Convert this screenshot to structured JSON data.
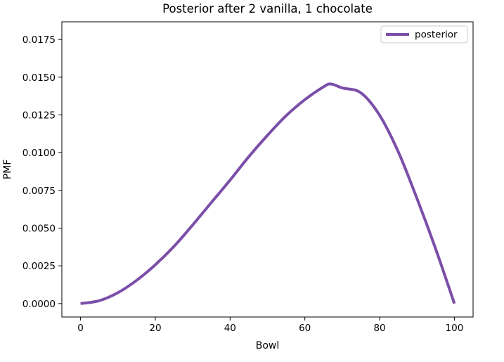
{
  "chart_data": {
    "type": "line",
    "title": "Posterior after 2 vanilla, 1 chocolate",
    "xlabel": "Bowl",
    "ylabel": "PMF",
    "xlim": [
      -5,
      105
    ],
    "ylim": [
      -0.00089,
      0.01867
    ],
    "x_ticks": [
      0,
      20,
      40,
      60,
      80,
      100
    ],
    "y_ticks": [
      0.0,
      0.0025,
      0.005,
      0.0075,
      0.01,
      0.0125,
      0.015,
      0.0175
    ],
    "x_tick_labels": [
      "0",
      "20",
      "40",
      "60",
      "80",
      "100"
    ],
    "y_tick_labels": [
      "0.0000",
      "0.0025",
      "0.0050",
      "0.0075",
      "0.0100",
      "0.0125",
      "0.0150",
      "0.0175"
    ],
    "grid": false,
    "legend": {
      "position": "top-right",
      "entries": [
        "posterior"
      ]
    },
    "series": [
      {
        "name": "posterior",
        "color": "#7b4ea8",
        "x": [
          0,
          5,
          10,
          15,
          20,
          25,
          30,
          35,
          40,
          45,
          50,
          55,
          60,
          65,
          67,
          70,
          75,
          80,
          85,
          90,
          95,
          100
        ],
        "y": [
          0.0,
          0.00019,
          0.00072,
          0.00154,
          0.00257,
          0.00379,
          0.00521,
          0.0067,
          0.00818,
          0.00973,
          0.01115,
          0.01245,
          0.01351,
          0.01436,
          0.01455,
          0.01429,
          0.01396,
          0.01248,
          0.01005,
          0.00696,
          0.00362,
          0.0
        ]
      }
    ]
  }
}
